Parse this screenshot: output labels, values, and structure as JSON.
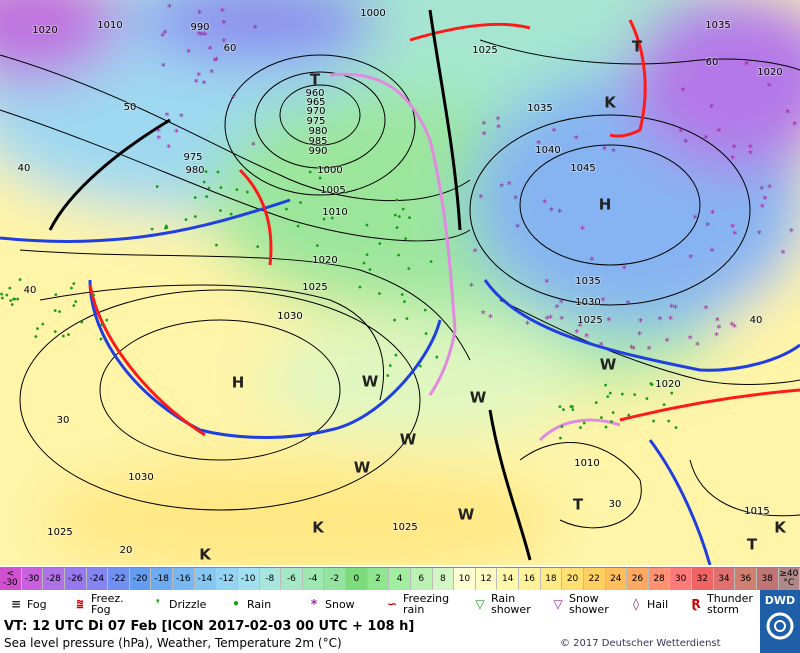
{
  "map": {
    "pressure_labels": [
      "1010",
      "990",
      "1000",
      "1025",
      "1035",
      "1020",
      "1020",
      "960",
      "965",
      "970",
      "975",
      "980",
      "985",
      "990",
      "975",
      "980",
      "1000",
      "1005",
      "1010",
      "1020",
      "1025",
      "1030",
      "1035",
      "1040",
      "1045",
      "1035",
      "1030",
      "1025",
      "1020",
      "1010",
      "1015",
      "1030",
      "1025",
      "1025"
    ],
    "temperature_labels": [
      "60",
      "50",
      "40",
      "40",
      "30",
      "20",
      "60",
      "40",
      "30"
    ],
    "centers": [
      "T",
      "H",
      "H",
      "K",
      "T",
      "T",
      "T",
      "K",
      "K",
      "W",
      "W",
      "W",
      "W",
      "W",
      "W",
      "K"
    ]
  },
  "scale": [
    {
      "label": "< -30",
      "color": "#d050d0"
    },
    {
      "label": "-30",
      "color": "#c860e0"
    },
    {
      "label": "-28",
      "color": "#b070e8"
    },
    {
      "label": "-26",
      "color": "#9878ee"
    },
    {
      "label": "-24",
      "color": "#8484f2"
    },
    {
      "label": "-22",
      "color": "#7090f2"
    },
    {
      "label": "-20",
      "color": "#649cf2"
    },
    {
      "label": "-18",
      "color": "#6caaf2"
    },
    {
      "label": "-16",
      "color": "#78b8f2"
    },
    {
      "label": "-14",
      "color": "#86c6f2"
    },
    {
      "label": "-12",
      "color": "#94d4f2"
    },
    {
      "label": "-10",
      "color": "#a2dff0"
    },
    {
      "label": "-8",
      "color": "#a6e6dc"
    },
    {
      "label": "-6",
      "color": "#a4e8c6"
    },
    {
      "label": "-4",
      "color": "#a0e8b2"
    },
    {
      "label": "-2",
      "color": "#94e4a0"
    },
    {
      "label": "0",
      "color": "#7cdc7c"
    },
    {
      "label": "2",
      "color": "#8ee68e"
    },
    {
      "label": "4",
      "color": "#a2eea0"
    },
    {
      "label": "6",
      "color": "#baf2b2"
    },
    {
      "label": "8",
      "color": "#d2f6c4"
    },
    {
      "label": "10",
      "color": "#ffffd4"
    },
    {
      "label": "12",
      "color": "#fffcc2"
    },
    {
      "label": "14",
      "color": "#fff8aa"
    },
    {
      "label": "16",
      "color": "#fff298"
    },
    {
      "label": "18",
      "color": "#ffea84"
    },
    {
      "label": "20",
      "color": "#ffe070"
    },
    {
      "label": "22",
      "color": "#ffd060"
    },
    {
      "label": "24",
      "color": "#ffbe5c"
    },
    {
      "label": "26",
      "color": "#ffa860"
    },
    {
      "label": "28",
      "color": "#ff9070"
    },
    {
      "label": "30",
      "color": "#ff7a7a"
    },
    {
      "label": "32",
      "color": "#f06464"
    },
    {
      "label": "34",
      "color": "#e07070"
    },
    {
      "label": "36",
      "color": "#d08070"
    },
    {
      "label": "38",
      "color": "#c07474"
    },
    {
      "label": "≥40 °C",
      "color": "#b08888"
    }
  ],
  "legend": [
    "Fog",
    "Freez. Fog",
    "Drizzle",
    "Rain",
    "Snow",
    "Freezing rain",
    "Rain shower",
    "Snow shower",
    "Hail",
    "Thunder storm"
  ],
  "footer": {
    "valid_time": "VT: 12 UTC Di  07 Feb [ICON 2017-02-03  00 UTC + 108 h]",
    "description": "Sea level pressure (hPa), Weather, Temperature 2m (°C)",
    "copyright": "© 2017 Deutscher Wetterdienst",
    "logo": "DWD"
  }
}
